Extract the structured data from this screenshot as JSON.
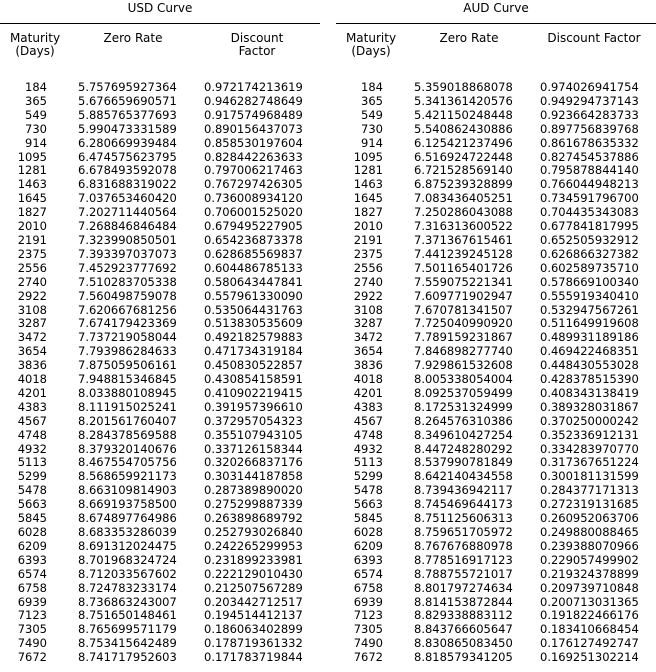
{
  "usd": {
    "title": "USD Curve",
    "headers": [
      "Maturity\n(Days)",
      "Zero Rate",
      "Discount\nFactor"
    ],
    "rows": [
      [
        "184",
        "5.757695927364",
        "0.972174213619"
      ],
      [
        "365",
        "5.676659690571",
        "0.946282748649"
      ],
      [
        "549",
        "5.885765377693",
        "0.917574968489"
      ],
      [
        "730",
        "5.990473331589",
        "0.890156437073"
      ],
      [
        "914",
        "6.280669939484",
        "0.858530197604"
      ],
      [
        "1095",
        "6.474575623795",
        "0.828442263633"
      ],
      [
        "1281",
        "6.678493592078",
        "0.797006217463"
      ],
      [
        "1463",
        "6.831688319022",
        "0.767297426305"
      ],
      [
        "1645",
        "7.037653460420",
        "0.736008934120"
      ],
      [
        "1827",
        "7.202711440564",
        "0.706001525020"
      ],
      [
        "2010",
        "7.268846846484",
        "0.679495227905"
      ],
      [
        "2191",
        "7.323990850501",
        "0.654236873378"
      ],
      [
        "2375",
        "7.393397037073",
        "0.628685569837"
      ],
      [
        "2556",
        "7.452923777692",
        "0.604486785133"
      ],
      [
        "2740",
        "7.510283705338",
        "0.580643447841"
      ],
      [
        "2922",
        "7.560498759078",
        "0.557961330090"
      ],
      [
        "3108",
        "7.620667681256",
        "0.535064431763"
      ],
      [
        "3287",
        "7.674179423369",
        "0.513830535609"
      ],
      [
        "3472",
        "7.737219058044",
        "0.492182579883"
      ],
      [
        "3654",
        "7.793986284633",
        "0.471734319184"
      ],
      [
        "3836",
        "7.875059506161",
        "0.450830522857"
      ],
      [
        "4018",
        "7.948815346845",
        "0.430854158591"
      ],
      [
        "4201",
        "8.033880108945",
        "0.410902219415"
      ],
      [
        "4383",
        "8.111915025241",
        "0.391957396610"
      ],
      [
        "4567",
        "8.201561760407",
        "0.372957054323"
      ],
      [
        "4748",
        "8.284378569588",
        "0.355107943105"
      ],
      [
        "4932",
        "8.379320140676",
        "0.337126158344"
      ],
      [
        "5113",
        "8.467554705756",
        "0.320266837176"
      ],
      [
        "5299",
        "8.568659921173",
        "0.303144187858"
      ],
      [
        "5478",
        "8.663109814903",
        "0.287389890020"
      ],
      [
        "5663",
        "8.669193758500",
        "0.275299887339"
      ],
      [
        "5845",
        "8.674897764986",
        "0.263898689792"
      ],
      [
        "6028",
        "8.683353286039",
        "0.252793026840"
      ],
      [
        "6209",
        "8.691312024475",
        "0.242265299953"
      ],
      [
        "6393",
        "8.701968324724",
        "0.231899233981"
      ],
      [
        "6574",
        "8.712033567602",
        "0.222129010430"
      ],
      [
        "6758",
        "8.724783233174",
        "0.212507567289"
      ],
      [
        "6939",
        "8.736863243007",
        "0.203442712517"
      ],
      [
        "7123",
        "8.751650148461",
        "0.194514412137"
      ],
      [
        "7305",
        "8.765699571179",
        "0.186063402899"
      ],
      [
        "7490",
        "8.753415642489",
        "0.178719361332"
      ],
      [
        "7672",
        "8.741717952603",
        "0.171783719844"
      ]
    ]
  },
  "aud": {
    "title": "AUD Curve",
    "headers": [
      "Maturity\n(Days)",
      "Zero Rate",
      "Discount Factor"
    ],
    "rows": [
      [
        "184",
        "5.359018868078",
        "0.974026941754"
      ],
      [
        "365",
        "5.341361420576",
        "0.949294737143"
      ],
      [
        "549",
        "5.421150248448",
        "0.923664283733"
      ],
      [
        "730",
        "5.540862430886",
        "0.897756839768"
      ],
      [
        "914",
        "6.125421237496",
        "0.861678635332"
      ],
      [
        "1095",
        "6.516924722448",
        "0.827454537886"
      ],
      [
        "1281",
        "6.721528569140",
        "0.795878844140"
      ],
      [
        "1463",
        "6.875239328899",
        "0.766044948213"
      ],
      [
        "1645",
        "7.083436405251",
        "0.734591796700"
      ],
      [
        "1827",
        "7.250286043088",
        "0.704435343083"
      ],
      [
        "2010",
        "7.316313600522",
        "0.677841817995"
      ],
      [
        "2191",
        "7.371367615461",
        "0.652505932912"
      ],
      [
        "2375",
        "7.441239245128",
        "0.626866327382"
      ],
      [
        "2556",
        "7.501165401726",
        "0.602589735710"
      ],
      [
        "2740",
        "7.559075221341",
        "0.578669100340"
      ],
      [
        "2922",
        "7.609771902947",
        "0.555919340410"
      ],
      [
        "3108",
        "7.670781341507",
        "0.532947567261"
      ],
      [
        "3287",
        "7.725040990920",
        "0.511649919608"
      ],
      [
        "3472",
        "7.789159231867",
        "0.489931189186"
      ],
      [
        "3654",
        "7.846898277740",
        "0.469422468351"
      ],
      [
        "3836",
        "7.929861532608",
        "0.448430553028"
      ],
      [
        "4018",
        "8.005338054004",
        "0.428378515390"
      ],
      [
        "4201",
        "8.092537059499",
        "0.408343138419"
      ],
      [
        "4383",
        "8.172531324999",
        "0.389328031867"
      ],
      [
        "4567",
        "8.264576310386",
        "0.370250000242"
      ],
      [
        "4748",
        "8.349610427254",
        "0.352336912131"
      ],
      [
        "4932",
        "8.447248280292",
        "0.334283970770"
      ],
      [
        "5113",
        "8.537990781849",
        "0.317367651224"
      ],
      [
        "5299",
        "8.642140434558",
        "0.300181131599"
      ],
      [
        "5478",
        "8.739436942117",
        "0.284377171313"
      ],
      [
        "5663",
        "8.745469644173",
        "0.272319131685"
      ],
      [
        "5845",
        "8.751125606313",
        "0.260952063706"
      ],
      [
        "6028",
        "8.759651705972",
        "0.249880088465"
      ],
      [
        "6209",
        "8.767676880978",
        "0.239388070966"
      ],
      [
        "6393",
        "8.778516917123",
        "0.229057499902"
      ],
      [
        "6574",
        "8.788755721017",
        "0.219324378899"
      ],
      [
        "6758",
        "8.801797274634",
        "0.209739710848"
      ],
      [
        "6939",
        "8.814153872844",
        "0.200713031365"
      ],
      [
        "7123",
        "8.829338883112",
        "0.191822466176"
      ],
      [
        "7305",
        "8.843766605647",
        "0.183410668454"
      ],
      [
        "7490",
        "8.830865083450",
        "0.176127492747"
      ],
      [
        "7672",
        "8.818579341205",
        "0.169251302214"
      ]
    ]
  }
}
